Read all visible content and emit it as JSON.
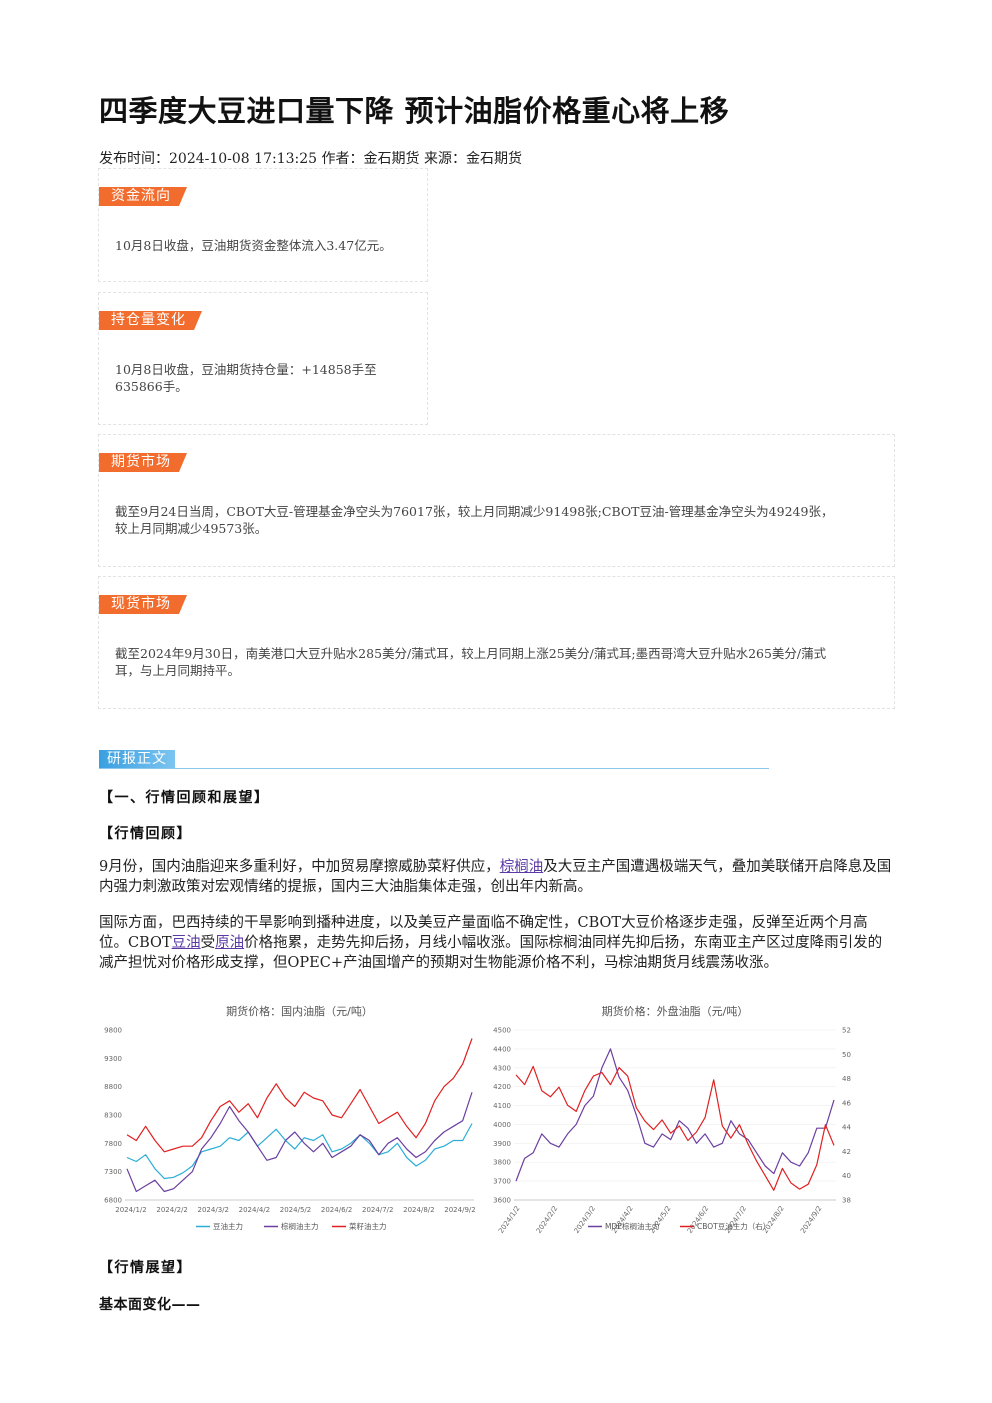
{
  "article": {
    "title": "四季度大豆进口量下降 预计油脂价格重心将上移",
    "meta": "发布时间：2024-10-08 17:13:25 作者：金石期货 来源：金石期货"
  },
  "boxes": {
    "fund_flow": {
      "tag": "资金流向",
      "text": "10月8日收盘，豆油期货资金整体流入3.47亿元。"
    },
    "position": {
      "tag": "持仓量变化",
      "text_line1": "10月8日收盘，豆油期货持仓量：+14858手至",
      "text_line2": "635866手。"
    },
    "futures": {
      "tag": "期货市场",
      "text_line1": "截至9月24日当周，CBOT大豆-管理基金净空头为76017张，较上月同期减少91498张;CBOT豆油-管理基金净空头为49249张，",
      "text_line2": "较上月同期减少49573张。"
    },
    "spot": {
      "tag": "现货市场",
      "text_line1": "截至2024年9月30日，南美港口大豆升贴水285美分/蒲式耳，较上月同期上涨25美分/蒲式耳;墨西哥湾大豆升贴水265美分/蒲式",
      "text_line2": "耳，与上月同期持平。"
    }
  },
  "body": {
    "tag": "研报正文",
    "h1": "【一、行情回顾和展望】",
    "h2": "【行情回顾】",
    "p1_a": "9月份，国内油脂迎来多重利好，中加贸易摩擦威胁菜籽供应，",
    "p1_link": "棕榈油",
    "p1_b": "及大豆主产国遭遇极端天气，叠加美联储开启降息及国内强力刺激政策对宏观情绪的提振，国内三大油脂集体走强，创出年内新高。",
    "p2_a": "国际方面，巴西持续的干旱影响到播种进度，以及美豆产量面临不确定性，CBOT大豆价格逐步走强，反弹至近两个月高位。CBOT",
    "p2_link1": "豆油",
    "p2_b": "受",
    "p2_link2": "原油",
    "p2_c": "价格拖累，走势先抑后扬，月线小幅收涨。国际棕榈油同样先抑后扬，东南亚主产区过度降雨引发的减产担忧对价格形成支撑，但OPEC+产油国增产的预期对生物能源价格不利，马棕油期货月线震荡收涨。",
    "h3": "【行情展望】",
    "h4": "基本面变化——"
  },
  "chart_data": [
    {
      "type": "line",
      "title": "期货价格：国内油脂（元/吨）",
      "xlabel": "",
      "ylabel": "",
      "x_ticks": [
        "2024/1/2",
        "2024/2/2",
        "2024/3/2",
        "2024/4/2",
        "2024/5/2",
        "2024/6/2",
        "2024/7/2",
        "2024/8/2",
        "2024/9/2"
      ],
      "y_ticks": [
        6800,
        7300,
        7800,
        8300,
        8800,
        9300,
        9800
      ],
      "ylim": [
        6800,
        9800
      ],
      "legend_position": "bottom",
      "series": [
        {
          "name": "豆油主力",
          "color": "#2aaed6",
          "values": [
            7550,
            7480,
            7600,
            7350,
            7180,
            7200,
            7280,
            7400,
            7650,
            7700,
            7750,
            7900,
            7850,
            8000,
            7750,
            7900,
            8050,
            7850,
            7700,
            7900,
            7850,
            7950,
            7650,
            7700,
            7800,
            7950,
            7800,
            7600,
            7650,
            7800,
            7550,
            7400,
            7500,
            7700,
            7750,
            7850,
            7850,
            8150
          ]
        },
        {
          "name": "棕榈油主力",
          "color": "#6b3fa0",
          "values": [
            7350,
            6950,
            7050,
            7150,
            6950,
            7000,
            7150,
            7300,
            7700,
            7900,
            8150,
            8450,
            8200,
            8000,
            7750,
            7500,
            7550,
            7850,
            8000,
            7800,
            7650,
            7800,
            7550,
            7650,
            7750,
            7950,
            7850,
            7600,
            7800,
            7900,
            7700,
            7550,
            7650,
            7850,
            8000,
            8100,
            8200,
            8700
          ]
        },
        {
          "name": "菜籽油主力",
          "color": "#e02020",
          "values": [
            7950,
            7850,
            8100,
            7850,
            7650,
            7700,
            7750,
            7750,
            7900,
            8200,
            8450,
            8550,
            8350,
            8500,
            8250,
            8600,
            8850,
            8600,
            8450,
            8700,
            8600,
            8550,
            8300,
            8250,
            8500,
            8750,
            8450,
            8150,
            8250,
            8350,
            8100,
            7900,
            8150,
            8550,
            8800,
            8950,
            9200,
            9650
          ]
        }
      ]
    },
    {
      "type": "line",
      "title": "期货价格：外盘油脂（元/吨）",
      "xlabel": "",
      "ylabel": "",
      "x_ticks": [
        "2024/1/2",
        "2024/2/2",
        "2024/3/2",
        "2024/4/2",
        "2024/5/2",
        "2024/6/2",
        "2024/7/2",
        "2024/8/2",
        "2024/9/2"
      ],
      "y_ticks_left": [
        3600,
        3700,
        3800,
        3900,
        4000,
        4100,
        4200,
        4300,
        4400,
        4500
      ],
      "ylim_left": [
        3600,
        4500
      ],
      "y_ticks_right": [
        38,
        40,
        42,
        44,
        46,
        48,
        50,
        52
      ],
      "ylim_right": [
        38,
        52
      ],
      "legend_position": "bottom",
      "series": [
        {
          "name": "MDE棕榈油主力",
          "color": "#6b3fa0",
          "axis": "left",
          "values": [
            3700,
            3820,
            3850,
            3950,
            3900,
            3880,
            3950,
            4000,
            4100,
            4150,
            4300,
            4400,
            4250,
            4180,
            4050,
            3900,
            3880,
            3950,
            3920,
            4020,
            3980,
            3900,
            3950,
            3880,
            3900,
            4020,
            3950,
            3920,
            3850,
            3780,
            3740,
            3850,
            3800,
            3780,
            3850,
            3980,
            3980,
            4130
          ]
        },
        {
          "name": "CBOT豆油主力（右）",
          "color": "#e02020",
          "axis": "right",
          "values": [
            48.3,
            47.5,
            49.0,
            47.0,
            46.5,
            47.3,
            45.8,
            45.3,
            47.0,
            48.2,
            48.5,
            47.5,
            48.9,
            48.2,
            45.6,
            44.5,
            43.8,
            44.6,
            43.5,
            44.1,
            42.9,
            43.6,
            44.8,
            47.9,
            44.1,
            43.1,
            44.2,
            42.6,
            41.2,
            40.0,
            38.8,
            40.6,
            39.4,
            38.9,
            39.3,
            40.9,
            44.2,
            42.5
          ]
        }
      ]
    }
  ]
}
